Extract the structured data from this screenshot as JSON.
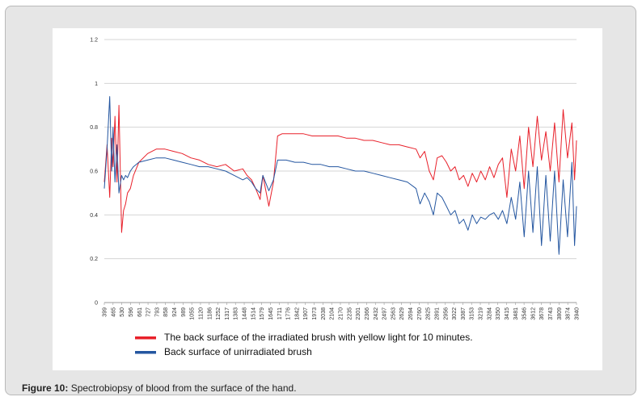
{
  "caption": {
    "label": "Figure 10:",
    "text": " Spectrobiopsy of blood from the surface of the hand."
  },
  "chart_data": {
    "type": "line",
    "title": "",
    "xlabel": "",
    "ylabel": "",
    "ylim": [
      0,
      1.2
    ],
    "yticks": [
      "0",
      "0.2",
      "0.4",
      "0.6",
      "0.8",
      "1",
      "1.2"
    ],
    "grid": true,
    "legend_position": "bottom",
    "x_tick_labels": [
      "399",
      "465",
      "530",
      "596",
      "661",
      "727",
      "793",
      "858",
      "924",
      "989",
      "1055",
      "1120",
      "1186",
      "1252",
      "1317",
      "1383",
      "1448",
      "1514",
      "1579",
      "1645",
      "1711",
      "1776",
      "1842",
      "1907",
      "1973",
      "2038",
      "2104",
      "2170",
      "2235",
      "2301",
      "2366",
      "2432",
      "2497",
      "2563",
      "2629",
      "2694",
      "2760",
      "2825",
      "2891",
      "2956",
      "3022",
      "3087",
      "3153",
      "3219",
      "3284",
      "3350",
      "3415",
      "3481",
      "3546",
      "3612",
      "3678",
      "3743",
      "3809",
      "3874",
      "3940"
    ],
    "series": [
      {
        "name": "The back surface of the irradiated brush with yellow light for 10 minutes.",
        "color": "#e8202a",
        "x": [
          399,
          420,
          440,
          455,
          465,
          480,
          495,
          510,
          530,
          545,
          560,
          575,
          596,
          620,
          661,
          727,
          793,
          858,
          924,
          989,
          1055,
          1120,
          1186,
          1252,
          1317,
          1383,
          1448,
          1480,
          1514,
          1545,
          1579,
          1600,
          1645,
          1680,
          1711,
          1745,
          1776,
          1842,
          1907,
          1973,
          2038,
          2104,
          2170,
          2235,
          2301,
          2366,
          2432,
          2497,
          2563,
          2629,
          2694,
          2760,
          2790,
          2825,
          2860,
          2891,
          2920,
          2956,
          2990,
          3022,
          3055,
          3087,
          3120,
          3153,
          3186,
          3219,
          3250,
          3284,
          3317,
          3350,
          3383,
          3415,
          3448,
          3481,
          3514,
          3546,
          3579,
          3612,
          3645,
          3678,
          3710,
          3743,
          3776,
          3809,
          3842,
          3874,
          3907,
          3940,
          3960,
          3975
        ],
        "values": [
          0.55,
          0.72,
          0.48,
          0.75,
          0.62,
          0.85,
          0.55,
          0.9,
          0.32,
          0.42,
          0.45,
          0.5,
          0.52,
          0.58,
          0.64,
          0.68,
          0.7,
          0.7,
          0.69,
          0.68,
          0.66,
          0.65,
          0.63,
          0.62,
          0.63,
          0.6,
          0.61,
          0.58,
          0.56,
          0.52,
          0.47,
          0.58,
          0.44,
          0.55,
          0.76,
          0.77,
          0.77,
          0.77,
          0.77,
          0.76,
          0.76,
          0.76,
          0.76,
          0.75,
          0.75,
          0.74,
          0.74,
          0.73,
          0.72,
          0.72,
          0.71,
          0.7,
          0.66,
          0.69,
          0.6,
          0.56,
          0.66,
          0.67,
          0.64,
          0.6,
          0.62,
          0.56,
          0.58,
          0.53,
          0.59,
          0.55,
          0.6,
          0.56,
          0.62,
          0.57,
          0.63,
          0.66,
          0.48,
          0.7,
          0.6,
          0.76,
          0.52,
          0.8,
          0.62,
          0.85,
          0.65,
          0.78,
          0.6,
          0.82,
          0.55,
          0.88,
          0.66,
          0.82,
          0.56,
          0.74
        ]
      },
      {
        "name": "Back surface of unirradiated brush",
        "color": "#2456a0",
        "x": [
          399,
          420,
          440,
          455,
          465,
          480,
          495,
          510,
          530,
          545,
          560,
          575,
          596,
          620,
          661,
          727,
          793,
          858,
          924,
          989,
          1055,
          1120,
          1186,
          1252,
          1317,
          1383,
          1448,
          1480,
          1514,
          1545,
          1579,
          1600,
          1645,
          1680,
          1711,
          1745,
          1776,
          1842,
          1907,
          1973,
          2038,
          2104,
          2170,
          2235,
          2301,
          2366,
          2432,
          2497,
          2563,
          2629,
          2694,
          2760,
          2790,
          2825,
          2860,
          2891,
          2920,
          2956,
          2990,
          3022,
          3055,
          3087,
          3120,
          3153,
          3186,
          3219,
          3250,
          3284,
          3317,
          3350,
          3383,
          3415,
          3448,
          3481,
          3514,
          3546,
          3579,
          3612,
          3645,
          3678,
          3710,
          3743,
          3776,
          3809,
          3842,
          3874,
          3907,
          3940,
          3960,
          3975
        ],
        "values": [
          0.52,
          0.7,
          0.94,
          0.6,
          0.8,
          0.55,
          0.72,
          0.5,
          0.58,
          0.56,
          0.58,
          0.57,
          0.6,
          0.62,
          0.64,
          0.65,
          0.66,
          0.66,
          0.65,
          0.64,
          0.63,
          0.62,
          0.62,
          0.61,
          0.6,
          0.58,
          0.56,
          0.57,
          0.55,
          0.52,
          0.5,
          0.58,
          0.51,
          0.56,
          0.65,
          0.65,
          0.65,
          0.64,
          0.64,
          0.63,
          0.63,
          0.62,
          0.62,
          0.61,
          0.6,
          0.6,
          0.59,
          0.58,
          0.57,
          0.56,
          0.55,
          0.52,
          0.45,
          0.5,
          0.46,
          0.4,
          0.5,
          0.48,
          0.44,
          0.4,
          0.42,
          0.36,
          0.38,
          0.33,
          0.4,
          0.36,
          0.39,
          0.38,
          0.4,
          0.41,
          0.38,
          0.42,
          0.36,
          0.48,
          0.38,
          0.55,
          0.3,
          0.6,
          0.32,
          0.62,
          0.26,
          0.58,
          0.28,
          0.6,
          0.22,
          0.56,
          0.3,
          0.64,
          0.26,
          0.44
        ]
      }
    ]
  }
}
